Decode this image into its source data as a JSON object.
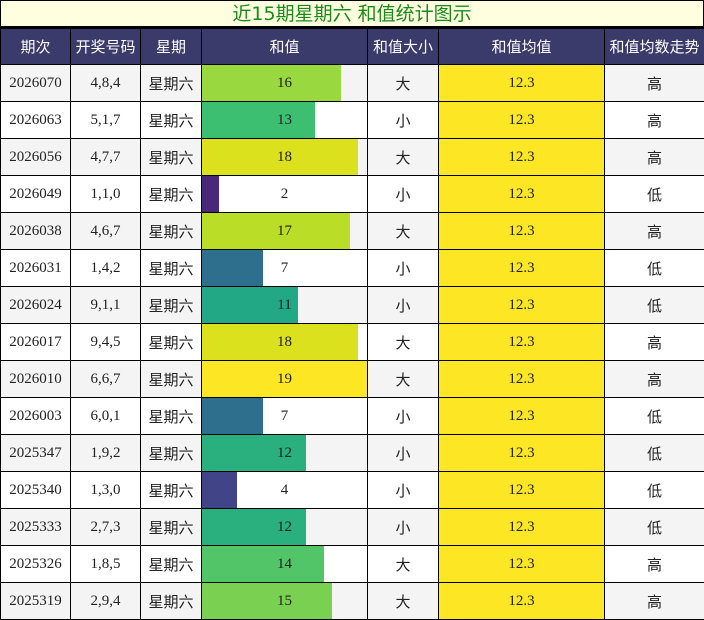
{
  "title": "近15期星期六 和值统计图示",
  "headers": [
    "期次",
    "开奖号码",
    "星期",
    "和值",
    "和值大小",
    "和值均值",
    "和值均数走势"
  ],
  "sum_max": 19,
  "rows": [
    {
      "issue": "2026070",
      "nums": "4,8,4",
      "day": "星期六",
      "sum": 16,
      "size": "大",
      "avg": "12.3",
      "trend": "高",
      "color": "#99d83e"
    },
    {
      "issue": "2026063",
      "nums": "5,1,7",
      "day": "星期六",
      "sum": 13,
      "size": "小",
      "avg": "12.3",
      "trend": "高",
      "color": "#3dbf72"
    },
    {
      "issue": "2026056",
      "nums": "4,7,7",
      "day": "星期六",
      "sum": 18,
      "size": "大",
      "avg": "12.3",
      "trend": "高",
      "color": "#dce11d"
    },
    {
      "issue": "2026049",
      "nums": "1,1,0",
      "day": "星期六",
      "sum": 2,
      "size": "小",
      "avg": "12.3",
      "trend": "低",
      "color": "#482878"
    },
    {
      "issue": "2026038",
      "nums": "4,6,7",
      "day": "星期六",
      "sum": 17,
      "size": "大",
      "avg": "12.3",
      "trend": "高",
      "color": "#bade28"
    },
    {
      "issue": "2026031",
      "nums": "1,4,2",
      "day": "星期六",
      "sum": 7,
      "size": "小",
      "avg": "12.3",
      "trend": "低",
      "color": "#2f6f8e"
    },
    {
      "issue": "2026024",
      "nums": "9,1,1",
      "day": "星期六",
      "sum": 11,
      "size": "小",
      "avg": "12.3",
      "trend": "低",
      "color": "#22a884"
    },
    {
      "issue": "2026017",
      "nums": "9,4,5",
      "day": "星期六",
      "sum": 18,
      "size": "大",
      "avg": "12.3",
      "trend": "高",
      "color": "#dce11d"
    },
    {
      "issue": "2026010",
      "nums": "6,6,7",
      "day": "星期六",
      "sum": 19,
      "size": "大",
      "avg": "12.3",
      "trend": "高",
      "color": "#fde725"
    },
    {
      "issue": "2026003",
      "nums": "6,0,1",
      "day": "星期六",
      "sum": 7,
      "size": "小",
      "avg": "12.3",
      "trend": "低",
      "color": "#2f6f8e"
    },
    {
      "issue": "2025347",
      "nums": "1,9,2",
      "day": "星期六",
      "sum": 12,
      "size": "小",
      "avg": "12.3",
      "trend": "低",
      "color": "#2ab07f"
    },
    {
      "issue": "2025340",
      "nums": "1,3,0",
      "day": "星期六",
      "sum": 4,
      "size": "小",
      "avg": "12.3",
      "trend": "低",
      "color": "#414487"
    },
    {
      "issue": "2025333",
      "nums": "2,7,3",
      "day": "星期六",
      "sum": 12,
      "size": "小",
      "avg": "12.3",
      "trend": "低",
      "color": "#2ab07f"
    },
    {
      "issue": "2025326",
      "nums": "1,8,5",
      "day": "星期六",
      "sum": 14,
      "size": "大",
      "avg": "12.3",
      "trend": "高",
      "color": "#52c569"
    },
    {
      "issue": "2025319",
      "nums": "2,9,4",
      "day": "星期六",
      "sum": 15,
      "size": "大",
      "avg": "12.3",
      "trend": "高",
      "color": "#7ad151"
    }
  ]
}
